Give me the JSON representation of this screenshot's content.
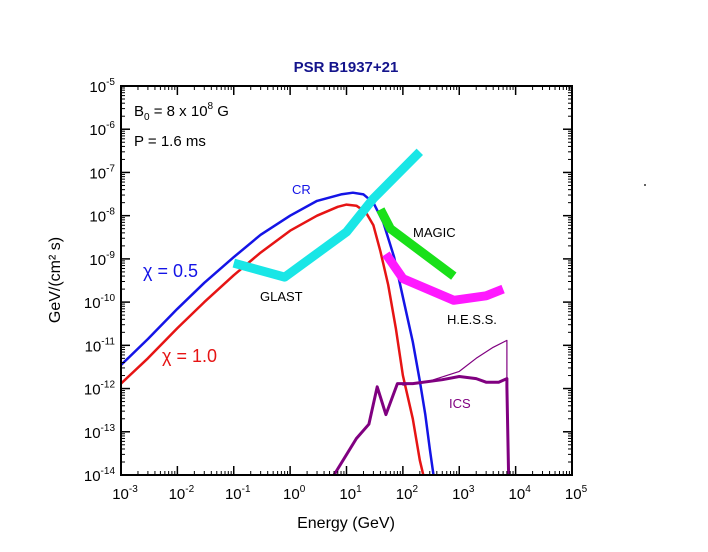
{
  "chart_data": {
    "type": "line",
    "title": "PSR B1937+21",
    "xlabel": "Energy (GeV)",
    "ylabel": "GeV/(cm² s)",
    "x_scale": "log",
    "y_scale": "log",
    "xlim": [
      0.001,
      100000
    ],
    "ylim": [
      1e-14,
      1e-05
    ],
    "grid": false,
    "x_tick_exponents": [
      "-3",
      "-2",
      "-1",
      "0",
      "1",
      "2",
      "3",
      "4",
      "5"
    ],
    "y_tick_exponents": [
      "-14",
      "-13",
      "-12",
      "-11",
      "-10",
      "-9",
      "-8",
      "-7",
      "-6",
      "-5"
    ],
    "tick_base": "10",
    "params": {
      "b0": "B",
      "b0_sub": "0",
      "b0_value": " = 8 x 10",
      "b0_exp": "8",
      "b0_unit": " G",
      "period": "P = 1.6 ms"
    },
    "colors": {
      "chi05": "#1414e6",
      "chi10": "#e61414",
      "glast": "#19e6e6",
      "magic": "#19e019",
      "hess": "#ff19ff",
      "ics": "#800080"
    },
    "series": [
      {
        "name": "χ = 0.5",
        "key": "chi05",
        "points": [
          [
            0.001,
            3.5e-12
          ],
          [
            0.003,
            1.4e-11
          ],
          [
            0.01,
            7e-11
          ],
          [
            0.03,
            2.8e-10
          ],
          [
            0.1,
            1.1e-09
          ],
          [
            0.3,
            3.6e-09
          ],
          [
            1,
            1e-08
          ],
          [
            3,
            2.2e-08
          ],
          [
            8,
            3.1e-08
          ],
          [
            13,
            3.4e-08
          ],
          [
            20,
            3.1e-08
          ],
          [
            30,
            2e-08
          ],
          [
            45,
            7e-09
          ],
          [
            70,
            1.1e-09
          ],
          [
            100,
            1.3e-10
          ],
          [
            150,
            1.2e-11
          ],
          [
            200,
            1.5e-12
          ],
          [
            250,
            2.5e-13
          ],
          [
            300,
            4e-14
          ],
          [
            350,
            1e-14
          ]
        ]
      },
      {
        "name": "χ = 1.0",
        "key": "chi10",
        "points": [
          [
            0.001,
            1.3e-12
          ],
          [
            0.003,
            5e-12
          ],
          [
            0.01,
            2.5e-11
          ],
          [
            0.03,
            1e-10
          ],
          [
            0.1,
            4.2e-10
          ],
          [
            0.3,
            1.4e-09
          ],
          [
            1,
            4.5e-09
          ],
          [
            3,
            1e-08
          ],
          [
            7,
            1.6e-08
          ],
          [
            10,
            1.8e-08
          ],
          [
            15,
            1.7e-08
          ],
          [
            22,
            1.2e-08
          ],
          [
            30,
            6e-09
          ],
          [
            40,
            1.5e-09
          ],
          [
            55,
            2.5e-10
          ],
          [
            75,
            2.5e-11
          ],
          [
            100,
            2e-12
          ],
          [
            150,
            2e-13
          ],
          [
            200,
            2.2e-14
          ],
          [
            230,
            1e-14
          ]
        ]
      },
      {
        "name": "GLAST",
        "key": "glast",
        "points": [
          [
            0.1,
            8e-10
          ],
          [
            0.8,
            3.8e-10
          ],
          [
            10,
            4.2e-09
          ],
          [
            30,
            2.5e-08
          ],
          [
            200,
            3e-07
          ]
        ]
      },
      {
        "name": "MAGIC",
        "key": "magic",
        "points": [
          [
            40,
            1.4e-08
          ],
          [
            60,
            5e-09
          ],
          [
            800,
            4e-10
          ]
        ]
      },
      {
        "name": "H.E.S.S.",
        "key": "hess",
        "points": [
          [
            50,
            1.3e-09
          ],
          [
            100,
            3.5e-10
          ],
          [
            800,
            1.1e-10
          ],
          [
            3000,
            1.4e-10
          ],
          [
            6000,
            2e-10
          ]
        ]
      },
      {
        "name": "ICS",
        "key": "ics",
        "points": [
          [
            6,
            1e-14
          ],
          [
            15,
            7e-14
          ],
          [
            25,
            1.5e-13
          ],
          [
            35,
            1.1e-12
          ],
          [
            50,
            2.5e-13
          ],
          [
            80,
            1.3e-12
          ],
          [
            150,
            1.3e-12
          ],
          [
            500,
            1.6e-12
          ],
          [
            1000,
            1.9e-12
          ],
          [
            2000,
            1.7e-12
          ],
          [
            3000,
            1.4e-12
          ],
          [
            5000,
            1.4e-12
          ],
          [
            7000,
            1.7e-12
          ],
          [
            7000,
            1.1e-12
          ],
          [
            7500,
            1e-14
          ]
        ]
      },
      {
        "name": "ICS (upper)",
        "key": "ics",
        "thin": true,
        "points": [
          [
            100,
            1.2e-12
          ],
          [
            300,
            1.5e-12
          ],
          [
            1000,
            2.5e-12
          ],
          [
            2000,
            5e-12
          ],
          [
            4000,
            9e-12
          ],
          [
            7000,
            1.3e-11
          ],
          [
            7000,
            1.8e-12
          ]
        ]
      }
    ],
    "annotations": [
      {
        "name": "chi05-label",
        "text": "χ = 0.5",
        "key": "chi05"
      },
      {
        "name": "chi10-label",
        "text": "χ = 1.0",
        "key": "chi10"
      },
      {
        "name": "cr-label",
        "text": "CR",
        "key": "chi05"
      },
      {
        "name": "glast-label",
        "text": "GLAST",
        "key": "text"
      },
      {
        "name": "magic-label",
        "text": "MAGIC",
        "key": "text"
      },
      {
        "name": "hess-label",
        "text": "H.E.S.S.",
        "key": "text"
      },
      {
        "name": "ics-label",
        "text": "ICS",
        "key": "ics"
      }
    ]
  }
}
